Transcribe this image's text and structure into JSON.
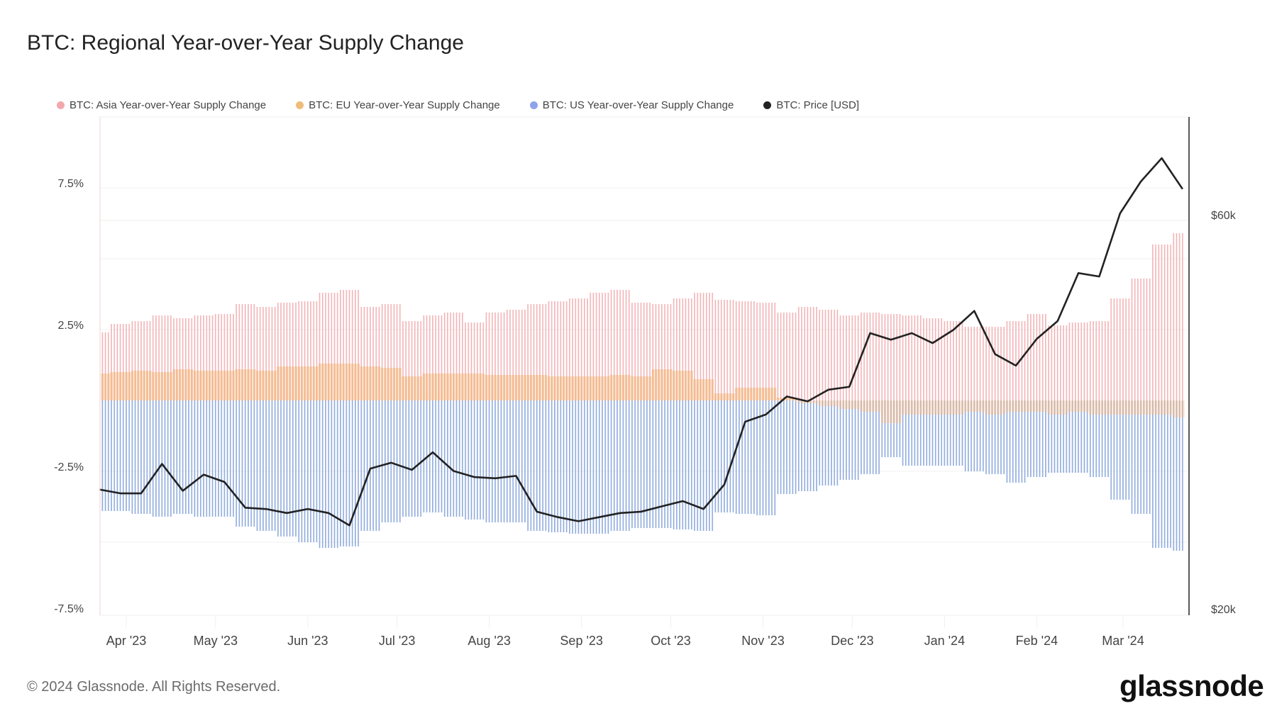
{
  "title": "BTC: Regional Year-over-Year Supply Change",
  "footer": {
    "copyright": "© 2024 Glassnode. All Rights Reserved.",
    "logo": "glassnode"
  },
  "legend": [
    {
      "label": "BTC: Asia Year-over-Year Supply Change",
      "color": "#f2a9ad"
    },
    {
      "label": "BTC: EU Year-over-Year Supply Change",
      "color": "#f0bc7a"
    },
    {
      "label": "BTC: US Year-over-Year Supply Change",
      "color": "#8ea3ec"
    },
    {
      "label": "BTC: Price [USD]",
      "color": "#222222"
    }
  ],
  "chart_data": {
    "type": "bar+line",
    "title": "BTC: Regional Year-over-Year Supply Change",
    "x_ticks": [
      "Apr '23",
      "May '23",
      "Jun '23",
      "Jul '23",
      "Aug '23",
      "Sep '23",
      "Oct '23",
      "Nov '23",
      "Dec '23",
      "Jan '24",
      "Feb '24",
      "Mar '24"
    ],
    "y_left": {
      "ticks": [
        "7.5%",
        "2.5%",
        "-2.5%",
        "-7.5%"
      ],
      "range": [
        -7.5,
        10.0
      ],
      "unit": "%"
    },
    "y_right": {
      "ticks": [
        "$60k",
        "$20k"
      ],
      "scale": "log",
      "range_usd": [
        20000,
        80000
      ]
    },
    "grid": true,
    "legend_position": "top",
    "dates": [
      "2023-03-23",
      "2023-03-30",
      "2023-04-06",
      "2023-04-13",
      "2023-04-20",
      "2023-04-27",
      "2023-05-04",
      "2023-05-11",
      "2023-05-18",
      "2023-05-25",
      "2023-06-01",
      "2023-06-08",
      "2023-06-15",
      "2023-06-22",
      "2023-06-29",
      "2023-07-06",
      "2023-07-13",
      "2023-07-20",
      "2023-07-27",
      "2023-08-03",
      "2023-08-10",
      "2023-08-17",
      "2023-08-24",
      "2023-08-31",
      "2023-09-07",
      "2023-09-14",
      "2023-09-21",
      "2023-09-28",
      "2023-10-05",
      "2023-10-12",
      "2023-10-19",
      "2023-10-26",
      "2023-11-02",
      "2023-11-09",
      "2023-11-16",
      "2023-11-23",
      "2023-11-30",
      "2023-12-07",
      "2023-12-14",
      "2023-12-21",
      "2023-12-28",
      "2024-01-04",
      "2024-01-11",
      "2024-01-18",
      "2024-01-25",
      "2024-02-01",
      "2024-02-08",
      "2024-02-15",
      "2024-02-22",
      "2024-02-29",
      "2024-03-07",
      "2024-03-14",
      "2024-03-21"
    ],
    "series": [
      {
        "name": "BTC: Asia Year-over-Year Supply Change",
        "type": "bar",
        "axis": "left",
        "color": "#f2a9ad",
        "values": [
          2.4,
          2.7,
          2.8,
          3.0,
          2.9,
          3.0,
          3.05,
          3.4,
          3.3,
          3.45,
          3.5,
          3.8,
          3.9,
          3.3,
          3.4,
          2.8,
          3.0,
          3.1,
          2.75,
          3.1,
          3.2,
          3.4,
          3.5,
          3.6,
          3.8,
          3.9,
          3.45,
          3.4,
          3.6,
          3.8,
          3.55,
          3.5,
          3.45,
          3.1,
          3.3,
          3.2,
          3.0,
          3.1,
          3.05,
          3.0,
          2.9,
          2.8,
          2.6,
          2.6,
          2.8,
          3.05,
          2.65,
          2.75,
          2.8,
          3.6,
          4.3,
          5.5,
          5.9
        ]
      },
      {
        "name": "BTC: EU Year-over-Year Supply Change",
        "type": "bar",
        "axis": "left",
        "color": "#f0bc7a",
        "values": [
          0.95,
          1.0,
          1.05,
          1.0,
          1.1,
          1.05,
          1.05,
          1.1,
          1.05,
          1.2,
          1.2,
          1.3,
          1.3,
          1.2,
          1.15,
          0.85,
          0.95,
          0.95,
          0.95,
          0.9,
          0.9,
          0.9,
          0.85,
          0.85,
          0.85,
          0.9,
          0.85,
          1.1,
          1.05,
          0.75,
          0.25,
          0.45,
          0.45,
          0.1,
          -0.1,
          -0.2,
          -0.3,
          -0.4,
          -0.8,
          -0.5,
          -0.5,
          -0.5,
          -0.4,
          -0.5,
          -0.4,
          -0.4,
          -0.5,
          -0.4,
          -0.5,
          -0.5,
          -0.5,
          -0.5,
          -0.6
        ]
      },
      {
        "name": "BTC: US Year-over-Year Supply Change",
        "type": "bar",
        "axis": "left",
        "color": "#8ea3ec",
        "values": [
          -3.9,
          -3.9,
          -4.0,
          -4.1,
          -4.0,
          -4.1,
          -4.1,
          -4.45,
          -4.6,
          -4.8,
          -5.0,
          -5.2,
          -5.15,
          -4.6,
          -4.3,
          -4.1,
          -3.95,
          -4.1,
          -4.2,
          -4.3,
          -4.3,
          -4.6,
          -4.65,
          -4.7,
          -4.7,
          -4.6,
          -4.5,
          -4.5,
          -4.55,
          -4.6,
          -3.95,
          -4.0,
          -4.05,
          -3.3,
          -3.2,
          -3.0,
          -2.8,
          -2.6,
          -2.0,
          -2.3,
          -2.3,
          -2.3,
          -2.5,
          -2.6,
          -2.9,
          -2.7,
          -2.55,
          -2.55,
          -2.7,
          -3.5,
          -4.0,
          -5.2,
          -5.3
        ]
      },
      {
        "name": "BTC: Price [USD]",
        "type": "line",
        "axis": "right",
        "color": "#222222",
        "values": [
          28300,
          28000,
          28000,
          30400,
          28200,
          29500,
          28900,
          26900,
          26800,
          26500,
          26800,
          26500,
          25600,
          30000,
          30500,
          29900,
          31400,
          29800,
          29300,
          29200,
          29400,
          26600,
          26200,
          25900,
          26200,
          26500,
          26600,
          27000,
          27400,
          26800,
          28700,
          34200,
          34900,
          36700,
          36200,
          37400,
          37700,
          43800,
          43000,
          43800,
          42600,
          44200,
          46600,
          41300,
          40000,
          43100,
          45300,
          51800,
          51300,
          61200,
          66900,
          71400,
          65500
        ]
      }
    ]
  }
}
